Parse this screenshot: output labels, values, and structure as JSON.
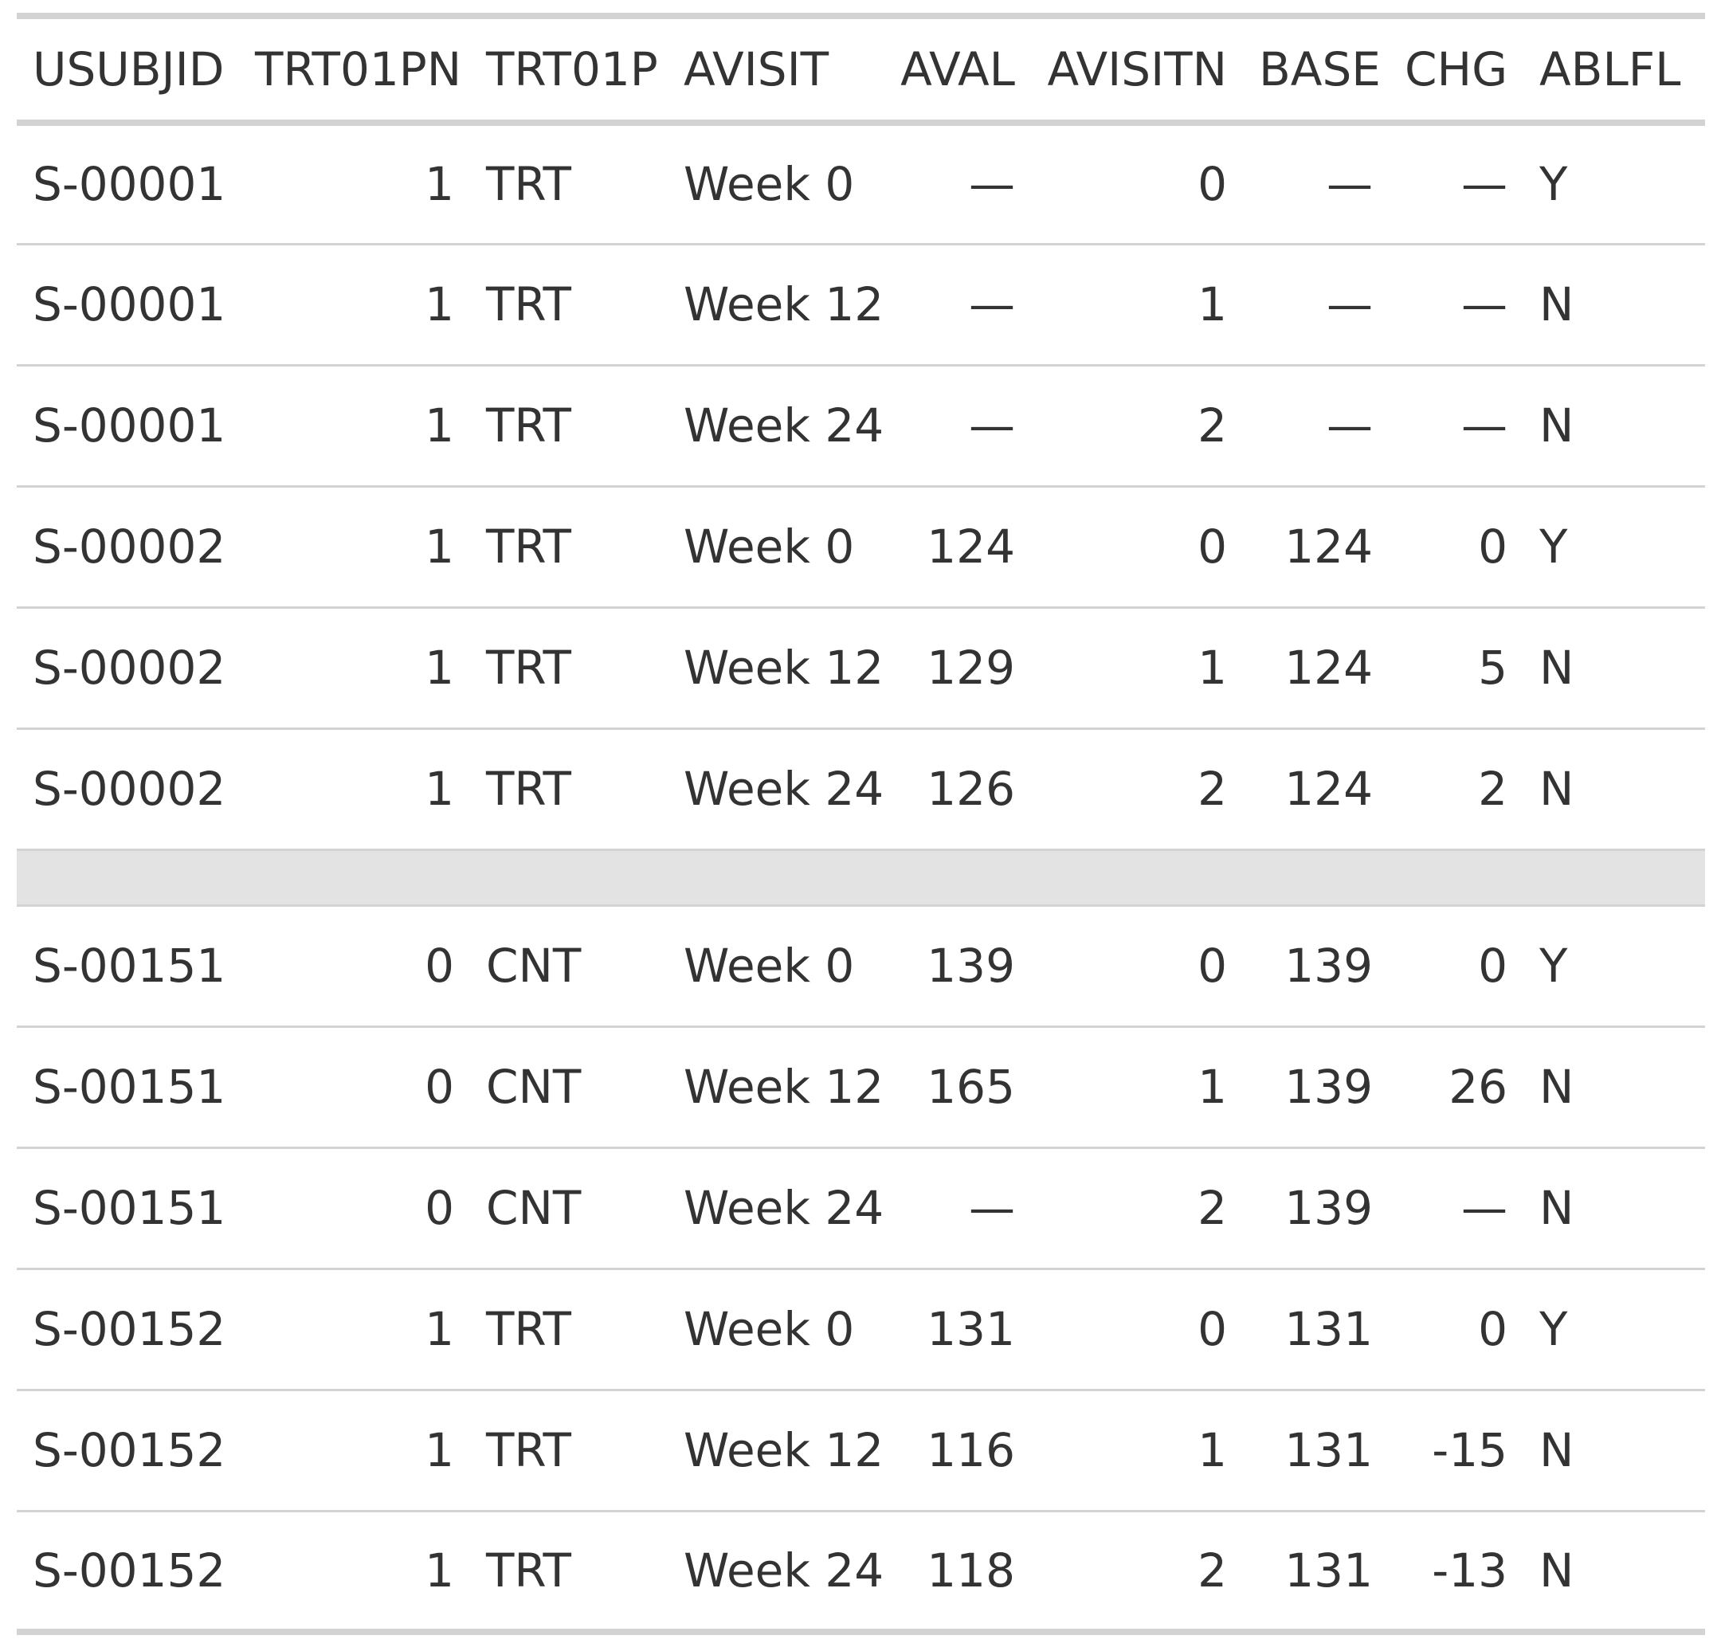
{
  "table": {
    "columns": [
      {
        "key": "usubjid",
        "label": "USUBJID",
        "align": "left"
      },
      {
        "key": "trt01pn",
        "label": "TRT01PN",
        "align": "right"
      },
      {
        "key": "trt01p",
        "label": "TRT01P",
        "align": "left"
      },
      {
        "key": "avisit",
        "label": "AVISIT",
        "align": "left"
      },
      {
        "key": "aval",
        "label": "AVAL",
        "align": "right"
      },
      {
        "key": "avisitn",
        "label": "AVISITN",
        "align": "right"
      },
      {
        "key": "base",
        "label": "BASE",
        "align": "right"
      },
      {
        "key": "chg",
        "label": "CHG",
        "align": "right"
      },
      {
        "key": "ablfl",
        "label": "ABLFL",
        "align": "left"
      }
    ],
    "rows": [
      [
        "S-00001",
        "1",
        "TRT",
        "Week 0",
        "—",
        "0",
        "—",
        "—",
        "Y"
      ],
      [
        "S-00001",
        "1",
        "TRT",
        "Week 12",
        "—",
        "1",
        "—",
        "—",
        "N"
      ],
      [
        "S-00001",
        "1",
        "TRT",
        "Week 24",
        "—",
        "2",
        "—",
        "—",
        "N"
      ],
      [
        "S-00002",
        "1",
        "TRT",
        "Week 0",
        "124",
        "0",
        "124",
        "0",
        "Y"
      ],
      [
        "S-00002",
        "1",
        "TRT",
        "Week 12",
        "129",
        "1",
        "124",
        "5",
        "N"
      ],
      [
        "S-00002",
        "1",
        "TRT",
        "Week 24",
        "126",
        "2",
        "124",
        "2",
        "N"
      ],
      [
        "S-00151",
        "0",
        "CNT",
        "Week 0",
        "139",
        "0",
        "139",
        "0",
        "Y"
      ],
      [
        "S-00151",
        "0",
        "CNT",
        "Week 12",
        "165",
        "1",
        "139",
        "26",
        "N"
      ],
      [
        "S-00151",
        "0",
        "CNT",
        "Week 24",
        "—",
        "2",
        "139",
        "—",
        "N"
      ],
      [
        "S-00152",
        "1",
        "TRT",
        "Week 0",
        "131",
        "0",
        "131",
        "0",
        "Y"
      ],
      [
        "S-00152",
        "1",
        "TRT",
        "Week 12",
        "116",
        "1",
        "131",
        "-15",
        "N"
      ],
      [
        "S-00152",
        "1",
        "TRT",
        "Week 24",
        "118",
        "2",
        "131",
        "-13",
        "N"
      ]
    ]
  },
  "colors": {
    "text": "#333333",
    "rule": "#d3d3d3",
    "group_band": "#e3e3e3",
    "background": "#ffffff"
  }
}
